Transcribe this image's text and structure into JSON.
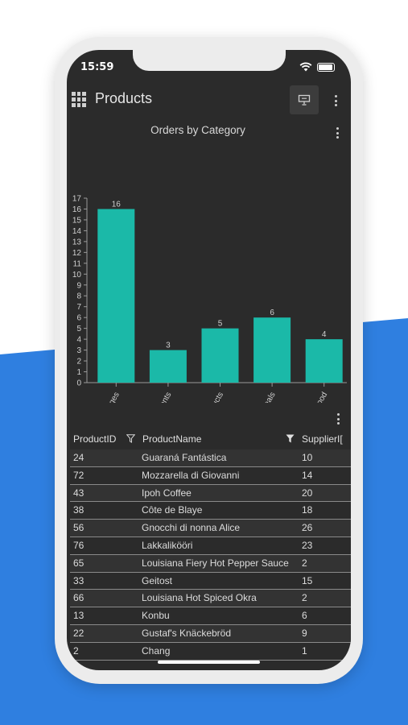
{
  "status_bar": {
    "time": "15:59"
  },
  "app_bar": {
    "title": "Products"
  },
  "chart_data": {
    "type": "bar",
    "title": "Orders by Category",
    "categories": [
      "Beverages",
      "Condiments",
      "Dairy Products",
      "Grains/Cereals",
      "Seafood"
    ],
    "values": [
      16,
      3,
      5,
      6,
      4
    ],
    "ylim": [
      0,
      17
    ],
    "yticks": [
      0,
      1,
      2,
      3,
      4,
      5,
      6,
      7,
      8,
      9,
      10,
      11,
      12,
      13,
      14,
      15,
      16,
      17
    ],
    "bar_color": "#1bb9a8",
    "data_labels": true,
    "grid": false
  },
  "table": {
    "columns": [
      "ProductID",
      "ProductName",
      "SupplierID"
    ],
    "columns_display": [
      "ProductID",
      "ProductName",
      "SupplierI["
    ],
    "rows": [
      [
        "24",
        "Guaraná Fantástica",
        "10"
      ],
      [
        "72",
        "Mozzarella di Giovanni",
        "14"
      ],
      [
        "43",
        "Ipoh Coffee",
        "20"
      ],
      [
        "38",
        "Côte de Blaye",
        "18"
      ],
      [
        "56",
        "Gnocchi di nonna Alice",
        "26"
      ],
      [
        "76",
        "Lakkalikööri",
        "23"
      ],
      [
        "65",
        "Louisiana Fiery Hot Pepper Sauce",
        "2"
      ],
      [
        "33",
        "Geitost",
        "15"
      ],
      [
        "66",
        "Louisiana Hot Spiced Okra",
        "2"
      ],
      [
        "13",
        "Konbu",
        "6"
      ],
      [
        "22",
        "Gustaf's Knäckebröd",
        "9"
      ],
      [
        "2",
        "Chang",
        "1"
      ]
    ]
  },
  "colors": {
    "accent": "#1bb9a8",
    "screen_bg": "#2b2b2b",
    "brand_blue": "#2f7fe0"
  }
}
